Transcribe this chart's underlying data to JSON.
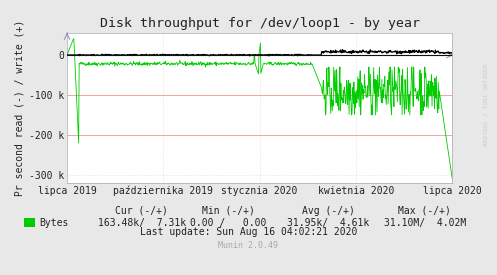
{
  "title": "Disk throughput for /dev/loop1 - by year",
  "ylabel": "Pr second read (-) / write (+)",
  "bg_color": "#e8e8e8",
  "plot_bg_color": "#ffffff",
  "red_line_color": "#ff9999",
  "line_color_green": "#00cc00",
  "line_color_black": "#000000",
  "x_tick_labels": [
    "lipca 2019",
    "października 2019",
    "stycznia 2020",
    "kwietnia 2020",
    "lipca 2020"
  ],
  "x_tick_positions": [
    0.0,
    0.25,
    0.5,
    0.75,
    1.0
  ],
  "y_ticks": [
    0,
    -100000,
    -200000,
    -300000
  ],
  "y_tick_labels": [
    "0",
    "-100 k",
    "-200 k",
    "-300 k"
  ],
  "ylim": [
    -320000,
    55000
  ],
  "xlim": [
    0.0,
    1.0
  ],
  "legend_color": "#00cc00",
  "cur_neg": "163.48k/",
  "cur_pos": "7.31k",
  "min_neg": "0.00 /",
  "min_pos": "0.00",
  "avg_neg": "31.95k/",
  "avg_pos": "4.61k",
  "max_neg": "31.10M/",
  "max_pos": "4.02M",
  "last_update": "Last update: Sun Aug 16 04:02:21 2020",
  "munin_version": "Munin 2.0.49",
  "rrdtool_label": "RRDTOOL / TOBI OETIKER",
  "watermark_color": "#cccccc",
  "font_color": "#222222",
  "title_fontsize": 9.5,
  "tick_fontsize": 7,
  "legend_fontsize": 7,
  "arrow_color": "#8888bb"
}
